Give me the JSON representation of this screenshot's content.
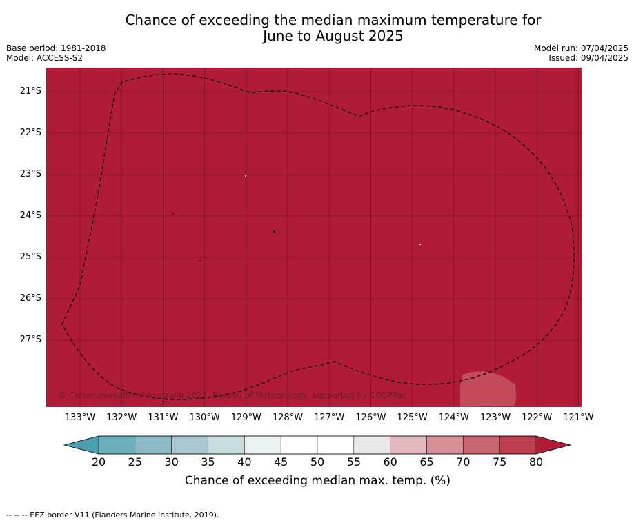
{
  "title": "Chance of exceeding the median maximum temperature for\nJune to August 2025",
  "meta_left": [
    "Base period: 1981-2018",
    "Model: ACCESS-S2"
  ],
  "meta_right": [
    "Model run: 07/04/2025",
    "Issued: 09/04/2025"
  ],
  "map": {
    "background_color": "#b01c38",
    "patch_color": "#c34b5b",
    "grid_color": "#7a1426",
    "boundary_style": "dashed",
    "lat_labels": [
      "21°S",
      "22°S",
      "23°S",
      "24°S",
      "25°S",
      "26°S",
      "27°S"
    ],
    "lon_labels": [
      "133°W",
      "132°W",
      "131°W",
      "130°W",
      "129°W",
      "128°W",
      "127°W",
      "126°W",
      "125°W",
      "124°W",
      "123°W",
      "122°W",
      "121°W"
    ],
    "copyright": "© Commonwealth of Australia 2025, Bureau of Meteorology, supported by COSPPac"
  },
  "colorbar": {
    "ticks": [
      "20",
      "25",
      "30",
      "35",
      "40",
      "45",
      "50",
      "55",
      "60",
      "65",
      "70",
      "75",
      "80"
    ],
    "low_extend_color": "#4aa0b0",
    "high_extend_color": "#b01c38",
    "colors": [
      "#6aaebc",
      "#8bbac4",
      "#a8c8cd",
      "#c8dbde",
      "#e9f1f2",
      "#ffffff",
      "#ffffff",
      "#e8e8e8",
      "#e2b8be",
      "#d48f97",
      "#c8646f",
      "#bc3f4f"
    ],
    "label": "Chance of exceeding median max. temp. (%)"
  },
  "footnote": "-- -- -- EEZ border V11 (Flanders Marine Institute, 2019)."
}
